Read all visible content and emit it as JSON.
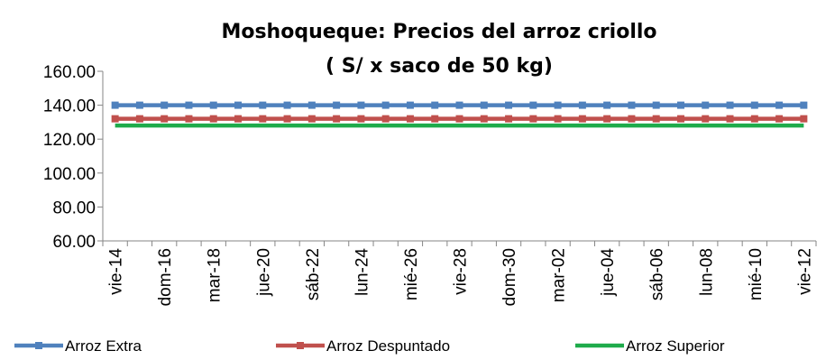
{
  "chart_data": {
    "type": "line",
    "title": "Moshoqueque: Precios del arroz  criollo",
    "subtitle": "( S/ x saco de 50 kg)",
    "xlabel": "",
    "ylabel": "",
    "ylim": [
      60,
      160
    ],
    "yticks": [
      "60.00",
      "80.00",
      "100.00",
      "120.00",
      "140.00",
      "160.00"
    ],
    "x_tick_labels": [
      "vie-14",
      "dom-16",
      "mar-18",
      "jue-20",
      "sáb-22",
      "lun-24",
      "mié-26",
      "vie-28",
      "dom-30",
      "mar-02",
      "jue-04",
      "sáb-06",
      "lun-08",
      "mié-10",
      "vie-12"
    ],
    "n_points": 29,
    "grid": false,
    "legend_position": "bottom",
    "series": [
      {
        "name": "Arroz Extra",
        "color": "#4F81BD",
        "marker": "square",
        "value": 140
      },
      {
        "name": "Arroz Despuntado",
        "color": "#C0504D",
        "marker": "square",
        "value": 132
      },
      {
        "name": "Arroz Superior",
        "color": "#1EAB4B",
        "marker": "line",
        "value": 128
      }
    ]
  }
}
